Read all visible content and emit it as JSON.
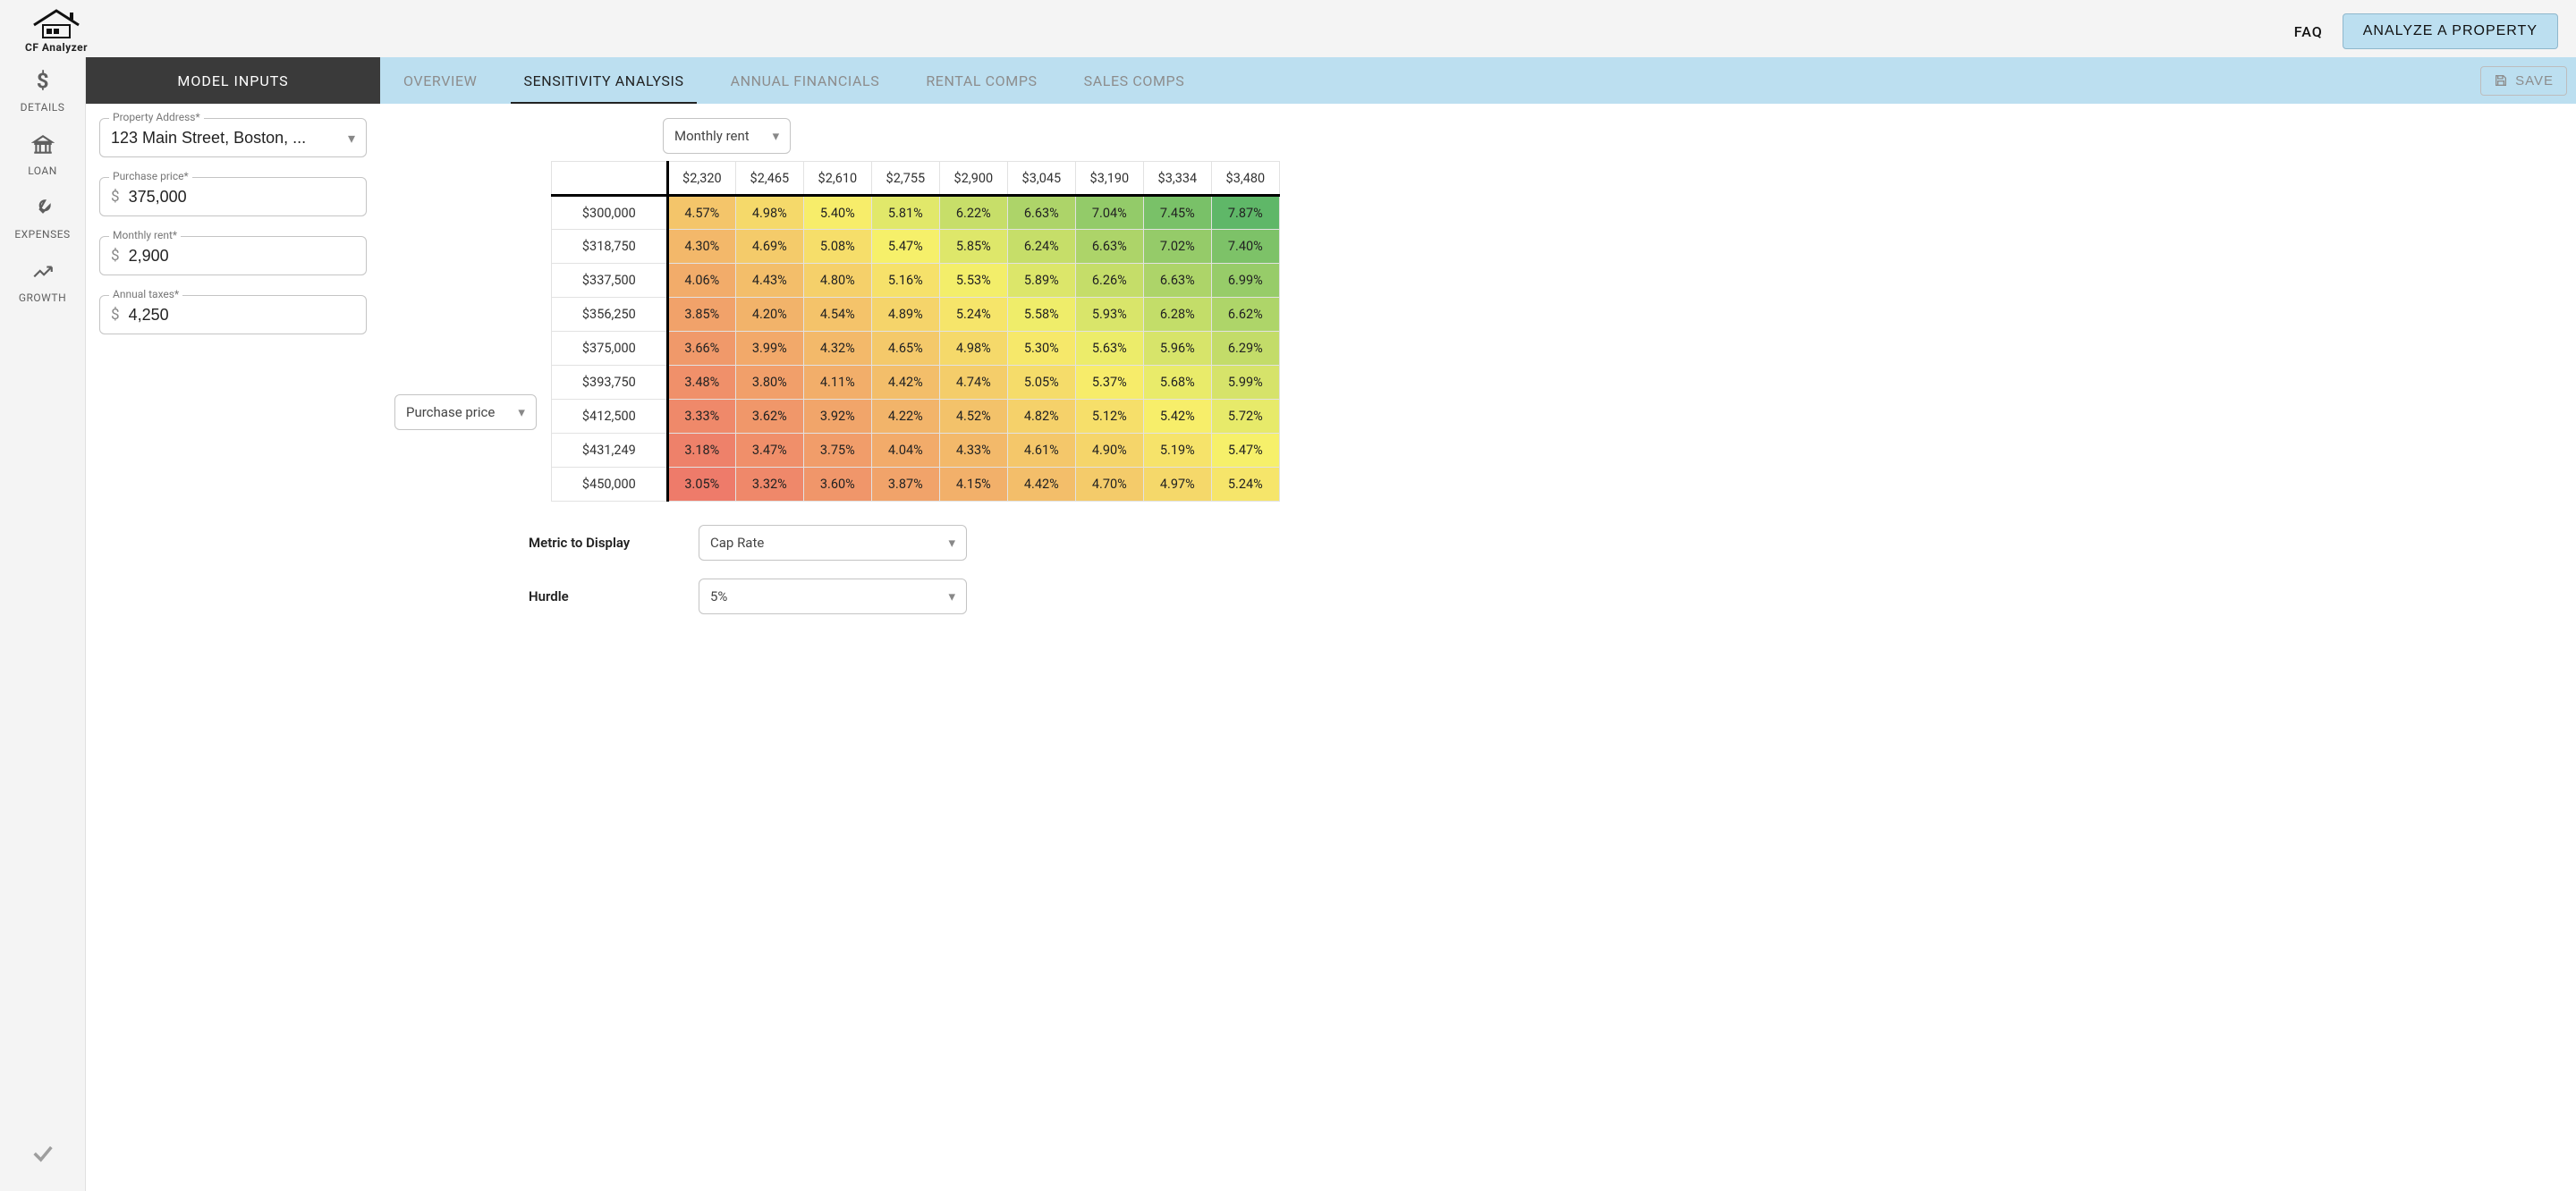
{
  "header": {
    "brand": "CF Analyzer",
    "faq_label": "FAQ",
    "analyze_label": "ANALYZE A PROPERTY"
  },
  "sidenav": {
    "items": [
      {
        "icon": "dollar",
        "label": "DETAILS"
      },
      {
        "icon": "bank",
        "label": "LOAN"
      },
      {
        "icon": "wrench",
        "label": "EXPENSES"
      },
      {
        "icon": "trend",
        "label": "GROWTH"
      }
    ]
  },
  "tabs": {
    "model_inputs": "MODEL INPUTS",
    "items": [
      {
        "label": "OVERVIEW",
        "active": false
      },
      {
        "label": "SENSITIVITY ANALYSIS",
        "active": true
      },
      {
        "label": "ANNUAL FINANCIALS",
        "active": false
      },
      {
        "label": "RENTAL COMPS",
        "active": false
      },
      {
        "label": "SALES COMPS",
        "active": false
      }
    ],
    "save_label": "SAVE"
  },
  "inputs": {
    "property_address": {
      "label": "Property Address*",
      "value": "123 Main Street, Boston, ..."
    },
    "purchase_price": {
      "label": "Purchase price*",
      "value": "375,000",
      "prefix": "$"
    },
    "monthly_rent": {
      "label": "Monthly rent*",
      "value": "2,900",
      "prefix": "$"
    },
    "annual_taxes": {
      "label": "Annual taxes*",
      "value": "4,250",
      "prefix": "$"
    }
  },
  "sensitivity": {
    "x_select": "Monthly rent",
    "y_select": "Purchase price",
    "col_headers": [
      "$2,320",
      "$2,465",
      "$2,610",
      "$2,755",
      "$2,900",
      "$3,045",
      "$3,190",
      "$3,334",
      "$3,480"
    ],
    "row_headers": [
      "$300,000",
      "$318,750",
      "$337,500",
      "$356,250",
      "$375,000",
      "$393,750",
      "$412,500",
      "$431,249",
      "$450,000"
    ],
    "cells": [
      [
        "4.57%",
        "4.98%",
        "5.40%",
        "5.81%",
        "6.22%",
        "6.63%",
        "7.04%",
        "7.45%",
        "7.87%"
      ],
      [
        "4.30%",
        "4.69%",
        "5.08%",
        "5.47%",
        "5.85%",
        "6.24%",
        "6.63%",
        "7.02%",
        "7.40%"
      ],
      [
        "4.06%",
        "4.43%",
        "4.80%",
        "5.16%",
        "5.53%",
        "5.89%",
        "6.26%",
        "6.63%",
        "6.99%"
      ],
      [
        "3.85%",
        "4.20%",
        "4.54%",
        "4.89%",
        "5.24%",
        "5.58%",
        "5.93%",
        "6.28%",
        "6.62%"
      ],
      [
        "3.66%",
        "3.99%",
        "4.32%",
        "4.65%",
        "4.98%",
        "5.30%",
        "5.63%",
        "5.96%",
        "6.29%"
      ],
      [
        "3.48%",
        "3.80%",
        "4.11%",
        "4.42%",
        "4.74%",
        "5.05%",
        "5.37%",
        "5.68%",
        "5.99%"
      ],
      [
        "3.33%",
        "3.62%",
        "3.92%",
        "4.22%",
        "4.52%",
        "4.82%",
        "5.12%",
        "5.42%",
        "5.72%"
      ],
      [
        "3.18%",
        "3.47%",
        "3.75%",
        "4.04%",
        "4.33%",
        "4.61%",
        "4.90%",
        "5.19%",
        "5.47%"
      ],
      [
        "3.05%",
        "3.32%",
        "3.60%",
        "3.87%",
        "4.15%",
        "4.42%",
        "4.70%",
        "4.97%",
        "5.24%"
      ]
    ],
    "value_min": 3.05,
    "value_max": 7.87,
    "color_low": "#ee7b6a",
    "color_mid": "#f7f06a",
    "color_high": "#5fb768"
  },
  "bottom": {
    "metric_label": "Metric to Display",
    "metric_value": "Cap Rate",
    "hurdle_label": "Hurdle",
    "hurdle_value": "5%"
  }
}
